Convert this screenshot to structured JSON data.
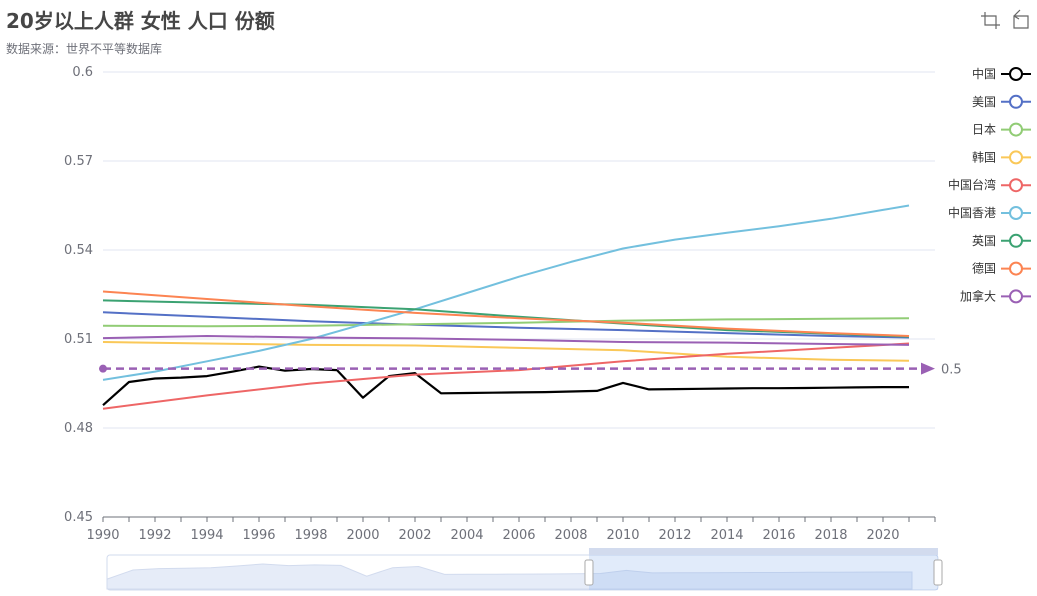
{
  "title": "20岁以上人群 女性 人口 份额",
  "subtitle": "数据来源：世界不平等数据库",
  "toolbox": {
    "icons": [
      "crop-icon",
      "restore-icon"
    ]
  },
  "chart_data": {
    "type": "line",
    "ylim": [
      0.45,
      0.6
    ],
    "yticks": [
      "0.45",
      "0.48",
      "0.51",
      "0.54",
      "0.57",
      "0.6"
    ],
    "xlim": [
      1990,
      2022
    ],
    "xticks": [
      "1990",
      "1992",
      "1994",
      "1996",
      "1998",
      "2000",
      "2002",
      "2004",
      "2006",
      "2008",
      "2010",
      "2012",
      "2014",
      "2016",
      "2018",
      "2020"
    ],
    "grid": true,
    "legend_position": "right",
    "markline": {
      "value": 0.5,
      "label": "0.5",
      "color": "#9a60b4"
    },
    "datazoom": {
      "start": 1990,
      "end": 2022,
      "window_start_fraction": 0.58,
      "window_end_fraction": 1.0
    },
    "series": [
      {
        "name": "中国",
        "color": "#000000",
        "width": 2.2,
        "x": [
          1990,
          1991,
          1992,
          1993,
          1994,
          1995,
          1996,
          1997,
          1998,
          1999,
          2000,
          2001,
          2002,
          2003,
          2004,
          2005,
          2006,
          2007,
          2008,
          2009,
          2010,
          2011,
          2012,
          2013,
          2014,
          2015,
          2016,
          2017,
          2018,
          2019,
          2020,
          2021
        ],
        "y": [
          0.4877,
          0.4955,
          0.4967,
          0.497,
          0.4975,
          0.499,
          0.5007,
          0.4993,
          0.4999,
          0.4995,
          0.4902,
          0.4975,
          0.4985,
          0.4917,
          0.4918,
          0.4919,
          0.492,
          0.4921,
          0.4923,
          0.4925,
          0.4952,
          0.493,
          0.4931,
          0.4932,
          0.4933,
          0.4934,
          0.4934,
          0.4935,
          0.4936,
          0.4937,
          0.4938,
          0.4938
        ]
      },
      {
        "name": "美国",
        "color": "#5470c6",
        "width": 2,
        "x": [
          1990,
          1994,
          1998,
          2002,
          2006,
          2010,
          2014,
          2018,
          2021
        ],
        "y": [
          0.519,
          0.5175,
          0.516,
          0.5148,
          0.5138,
          0.513,
          0.512,
          0.511,
          0.5105
        ]
      },
      {
        "name": "日本",
        "color": "#91cc75",
        "width": 2,
        "x": [
          1990,
          1994,
          1998,
          2002,
          2006,
          2010,
          2014,
          2018,
          2021
        ],
        "y": [
          0.5145,
          0.5143,
          0.5145,
          0.515,
          0.5155,
          0.5162,
          0.5166,
          0.5168,
          0.517
        ]
      },
      {
        "name": "韩国",
        "color": "#fac858",
        "width": 2,
        "x": [
          1990,
          1994,
          1998,
          2002,
          2006,
          2010,
          2014,
          2016,
          2018,
          2021
        ],
        "y": [
          0.509,
          0.5085,
          0.508,
          0.5078,
          0.507,
          0.5062,
          0.504,
          0.5035,
          0.503,
          0.5027
        ]
      },
      {
        "name": "中国台湾",
        "color": "#ee6666",
        "width": 2,
        "x": [
          1990,
          1994,
          1998,
          2002,
          2006,
          2010,
          2014,
          2018,
          2021
        ],
        "y": [
          0.4865,
          0.491,
          0.495,
          0.498,
          0.4995,
          0.5025,
          0.505,
          0.507,
          0.5085
        ]
      },
      {
        "name": "中国香港",
        "color": "#73c0de",
        "width": 2,
        "x": [
          1990,
          1992,
          1994,
          1996,
          1998,
          2000,
          2002,
          2004,
          2006,
          2008,
          2010,
          2012,
          2014,
          2016,
          2018,
          2020,
          2021
        ],
        "y": [
          0.4962,
          0.499,
          0.5025,
          0.506,
          0.51,
          0.515,
          0.52,
          0.5255,
          0.531,
          0.536,
          0.5405,
          0.5435,
          0.5458,
          0.548,
          0.5505,
          0.5535,
          0.555
        ]
      },
      {
        "name": "英国",
        "color": "#3ba272",
        "width": 2,
        "x": [
          1990,
          1994,
          1998,
          2002,
          2006,
          2010,
          2014,
          2018,
          2021
        ],
        "y": [
          0.523,
          0.5222,
          0.5215,
          0.52,
          0.5175,
          0.5152,
          0.513,
          0.5118,
          0.5108
        ]
      },
      {
        "name": "德国",
        "color": "#fc8452",
        "width": 2,
        "x": [
          1990,
          1994,
          1998,
          2002,
          2006,
          2010,
          2014,
          2018,
          2021
        ],
        "y": [
          0.526,
          0.5235,
          0.521,
          0.5188,
          0.517,
          0.5155,
          0.5135,
          0.512,
          0.511
        ]
      },
      {
        "name": "加拿大",
        "color": "#9a60b4",
        "width": 2,
        "x": [
          1990,
          1994,
          1998,
          2002,
          2006,
          2010,
          2014,
          2018,
          2021
        ],
        "y": [
          0.5103,
          0.511,
          0.5105,
          0.5102,
          0.5097,
          0.509,
          0.5088,
          0.5083,
          0.508
        ]
      }
    ]
  }
}
